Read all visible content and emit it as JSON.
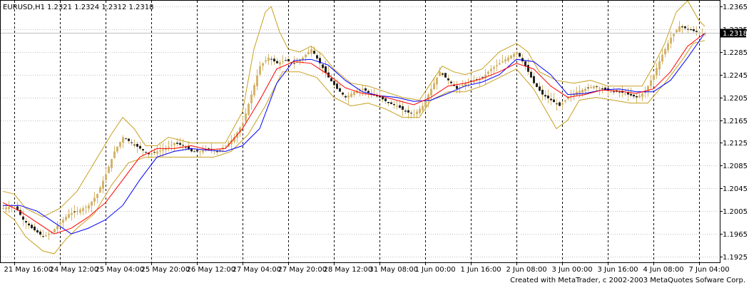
{
  "header": {
    "symbol": "EURUSD,H1",
    "ohlc": "1.2321 1.2324 1.2312 1.2318"
  },
  "footer": {
    "credit": "Created with MetaTrader, c 2002-2003 MetaQuotes Sofware Corp."
  },
  "price_badge": "1.2318",
  "colors": {
    "background": "#ffffff",
    "frame": "#000000",
    "grid_vertical": "#000000",
    "grid_horizontal": "#c0c0c0",
    "candles": "#d4b46a",
    "envelope": "#c8a020",
    "ma_fast": "#ff0000",
    "ma_slow": "#0000ff",
    "badge_bg": "#000000",
    "badge_text": "#ffffff"
  },
  "chart_data": {
    "type": "line",
    "y_ticks": [
      "1.2365",
      "1.2325",
      "1.2285",
      "1.2245",
      "1.2205",
      "1.2165",
      "1.2125",
      "1.2085",
      "1.2045",
      "1.2005",
      "1.1965",
      "1.1925"
    ],
    "y_tick_values": [
      1.2365,
      1.2325,
      1.2285,
      1.2245,
      1.2205,
      1.2165,
      1.2125,
      1.2085,
      1.2045,
      1.2005,
      1.1965,
      1.1925
    ],
    "ylim": [
      1.1915,
      1.2375
    ],
    "x_ticks": [
      "21 May 16:00",
      "24 May 12:00",
      "25 May 04:00",
      "25 May 20:00",
      "26 May 12:00",
      "27 May 04:00",
      "27 May 20:00",
      "28 May 12:00",
      "31 May 08:00",
      "1 Jun 00:00",
      "1 Jun 16:00",
      "2 Jun 08:00",
      "3 Jun 00:00",
      "3 Jun 16:00",
      "4 Jun 08:00",
      "7 Jun 04:00"
    ],
    "bars_count": 240,
    "x_tick_bars": [
      4,
      20,
      36,
      52,
      68,
      84,
      100,
      116,
      132,
      148,
      164,
      180,
      196,
      212,
      228,
      244
    ],
    "grid": true,
    "last_price": 1.2318,
    "series": [
      {
        "key": "close",
        "points": [
          [
            0,
            1.201
          ],
          [
            4,
            1.2015
          ],
          [
            7,
            1.199
          ],
          [
            10,
            1.1975
          ],
          [
            14,
            1.196
          ],
          [
            17,
            1.1968
          ],
          [
            20,
            1.1985
          ],
          [
            23,
            1.2
          ],
          [
            26,
            1.2005
          ],
          [
            30,
            1.2015
          ],
          [
            33,
            1.2035
          ],
          [
            36,
            1.207
          ],
          [
            39,
            1.211
          ],
          [
            42,
            1.2135
          ],
          [
            45,
            1.2125
          ],
          [
            48,
            1.2115
          ],
          [
            51,
            1.2105
          ],
          [
            54,
            1.211
          ],
          [
            57,
            1.2115
          ],
          [
            60,
            1.2125
          ],
          [
            63,
            1.212
          ],
          [
            66,
            1.211
          ],
          [
            69,
            1.211
          ],
          [
            72,
            1.2115
          ],
          [
            75,
            1.211
          ],
          [
            78,
            1.212
          ],
          [
            81,
            1.2135
          ],
          [
            84,
            1.216
          ],
          [
            87,
            1.221
          ],
          [
            90,
            1.226
          ],
          [
            93,
            1.2275
          ],
          [
            96,
            1.2265
          ],
          [
            99,
            1.227
          ],
          [
            102,
            1.2265
          ],
          [
            105,
            1.2275
          ],
          [
            108,
            1.229
          ],
          [
            111,
            1.2265
          ],
          [
            114,
            1.224
          ],
          [
            117,
            1.222
          ],
          [
            120,
            1.2205
          ],
          [
            123,
            1.2215
          ],
          [
            126,
            1.222
          ],
          [
            129,
            1.221
          ],
          [
            132,
            1.2205
          ],
          [
            135,
            1.2195
          ],
          [
            138,
            1.219
          ],
          [
            141,
            1.218
          ],
          [
            144,
            1.2175
          ],
          [
            147,
            1.219
          ],
          [
            150,
            1.222
          ],
          [
            153,
            1.225
          ],
          [
            156,
            1.2235
          ],
          [
            159,
            1.222
          ],
          [
            162,
            1.223
          ],
          [
            165,
            1.2235
          ],
          [
            168,
            1.224
          ],
          [
            171,
            1.2255
          ],
          [
            174,
            1.2265
          ],
          [
            177,
            1.2275
          ],
          [
            180,
            1.2285
          ],
          [
            183,
            1.226
          ],
          [
            186,
            1.223
          ],
          [
            189,
            1.221
          ],
          [
            192,
            1.22
          ],
          [
            195,
            1.219
          ],
          [
            198,
            1.2205
          ],
          [
            201,
            1.2215
          ],
          [
            204,
            1.222
          ],
          [
            207,
            1.2225
          ],
          [
            210,
            1.222
          ],
          [
            213,
            1.2215
          ],
          [
            216,
            1.2215
          ],
          [
            219,
            1.221
          ],
          [
            222,
            1.2205
          ],
          [
            225,
            1.2215
          ],
          [
            228,
            1.2245
          ],
          [
            231,
            1.228
          ],
          [
            234,
            1.231
          ],
          [
            237,
            1.233
          ],
          [
            240,
            1.2325
          ],
          [
            243,
            1.232
          ],
          [
            246,
            1.2318
          ]
        ]
      },
      {
        "key": "ma_fast",
        "points": [
          [
            0,
            1.202
          ],
          [
            6,
            1.2005
          ],
          [
            12,
            1.1985
          ],
          [
            18,
            1.1965
          ],
          [
            24,
            1.1975
          ],
          [
            30,
            1.1995
          ],
          [
            36,
            1.202
          ],
          [
            42,
            1.206
          ],
          [
            48,
            1.21
          ],
          [
            54,
            1.2115
          ],
          [
            60,
            1.2115
          ],
          [
            66,
            1.212
          ],
          [
            72,
            1.2113
          ],
          [
            78,
            1.2115
          ],
          [
            84,
            1.215
          ],
          [
            90,
            1.22
          ],
          [
            96,
            1.2255
          ],
          [
            102,
            1.2268
          ],
          [
            108,
            1.2265
          ],
          [
            114,
            1.2245
          ],
          [
            120,
            1.2222
          ],
          [
            126,
            1.2212
          ],
          [
            132,
            1.2208
          ],
          [
            138,
            1.22
          ],
          [
            144,
            1.2192
          ],
          [
            150,
            1.2205
          ],
          [
            156,
            1.2225
          ],
          [
            162,
            1.223
          ],
          [
            168,
            1.2238
          ],
          [
            174,
            1.225
          ],
          [
            180,
            1.2265
          ],
          [
            186,
            1.2255
          ],
          [
            192,
            1.2225
          ],
          [
            198,
            1.2205
          ],
          [
            204,
            1.221
          ],
          [
            210,
            1.2218
          ],
          [
            216,
            1.2216
          ],
          [
            222,
            1.2212
          ],
          [
            228,
            1.222
          ],
          [
            234,
            1.225
          ],
          [
            240,
            1.2295
          ],
          [
            246,
            1.2318
          ]
        ]
      },
      {
        "key": "ma_slow",
        "points": [
          [
            0,
            1.2015
          ],
          [
            6,
            1.2015
          ],
          [
            12,
            1.2005
          ],
          [
            18,
            1.1985
          ],
          [
            24,
            1.1965
          ],
          [
            30,
            1.1975
          ],
          [
            36,
            1.199
          ],
          [
            42,
            1.2015
          ],
          [
            48,
            1.206
          ],
          [
            54,
            1.21
          ],
          [
            60,
            1.211
          ],
          [
            66,
            1.2115
          ],
          [
            72,
            1.2112
          ],
          [
            78,
            1.211
          ],
          [
            84,
            1.212
          ],
          [
            90,
            1.215
          ],
          [
            96,
            1.223
          ],
          [
            102,
            1.227
          ],
          [
            108,
            1.2272
          ],
          [
            114,
            1.2262
          ],
          [
            120,
            1.2235
          ],
          [
            126,
            1.2215
          ],
          [
            132,
            1.2208
          ],
          [
            138,
            1.2205
          ],
          [
            144,
            1.2198
          ],
          [
            150,
            1.22
          ],
          [
            156,
            1.2212
          ],
          [
            162,
            1.2225
          ],
          [
            168,
            1.2232
          ],
          [
            174,
            1.2245
          ],
          [
            180,
            1.2272
          ],
          [
            186,
            1.2268
          ],
          [
            192,
            1.2245
          ],
          [
            198,
            1.221
          ],
          [
            204,
            1.2212
          ],
          [
            210,
            1.2218
          ],
          [
            216,
            1.222
          ],
          [
            222,
            1.2215
          ],
          [
            228,
            1.2215
          ],
          [
            234,
            1.2235
          ],
          [
            240,
            1.2275
          ],
          [
            246,
            1.2318
          ]
        ]
      },
      {
        "key": "envelope_upper",
        "points": [
          [
            0,
            1.204
          ],
          [
            4,
            1.2035
          ],
          [
            8,
            1.201
          ],
          [
            14,
            1.1995
          ],
          [
            20,
            1.201
          ],
          [
            26,
            1.204
          ],
          [
            32,
            1.209
          ],
          [
            38,
            1.214
          ],
          [
            42,
            1.217
          ],
          [
            46,
            1.215
          ],
          [
            50,
            1.212
          ],
          [
            54,
            1.212
          ],
          [
            58,
            1.2135
          ],
          [
            62,
            1.213
          ],
          [
            66,
            1.2125
          ],
          [
            72,
            1.2125
          ],
          [
            78,
            1.2125
          ],
          [
            84,
            1.218
          ],
          [
            88,
            1.229
          ],
          [
            92,
            1.2355
          ],
          [
            94,
            1.2365
          ],
          [
            97,
            1.232
          ],
          [
            100,
            1.229
          ],
          [
            104,
            1.2285
          ],
          [
            108,
            1.2295
          ],
          [
            112,
            1.228
          ],
          [
            116,
            1.2255
          ],
          [
            122,
            1.223
          ],
          [
            128,
            1.2225
          ],
          [
            134,
            1.2215
          ],
          [
            140,
            1.2205
          ],
          [
            146,
            1.22
          ],
          [
            150,
            1.223
          ],
          [
            154,
            1.226
          ],
          [
            158,
            1.225
          ],
          [
            162,
            1.2245
          ],
          [
            168,
            1.2255
          ],
          [
            174,
            1.2285
          ],
          [
            180,
            1.23
          ],
          [
            184,
            1.2285
          ],
          [
            188,
            1.225
          ],
          [
            194,
            1.2235
          ],
          [
            200,
            1.223
          ],
          [
            206,
            1.2235
          ],
          [
            212,
            1.2225
          ],
          [
            218,
            1.2225
          ],
          [
            224,
            1.2225
          ],
          [
            228,
            1.226
          ],
          [
            232,
            1.23
          ],
          [
            236,
            1.2355
          ],
          [
            240,
            1.2375
          ],
          [
            244,
            1.234
          ],
          [
            246,
            1.233
          ]
        ]
      },
      {
        "key": "envelope_lower",
        "points": [
          [
            0,
            1.2005
          ],
          [
            4,
            1.199
          ],
          [
            8,
            1.196
          ],
          [
            14,
            1.1935
          ],
          [
            18,
            1.193
          ],
          [
            22,
            1.1955
          ],
          [
            26,
            1.1975
          ],
          [
            32,
            1.2
          ],
          [
            38,
            1.205
          ],
          [
            44,
            1.209
          ],
          [
            50,
            1.21
          ],
          [
            56,
            1.21
          ],
          [
            62,
            1.21
          ],
          [
            68,
            1.21
          ],
          [
            74,
            1.21
          ],
          [
            80,
            1.211
          ],
          [
            86,
            1.214
          ],
          [
            92,
            1.219
          ],
          [
            98,
            1.225
          ],
          [
            104,
            1.225
          ],
          [
            110,
            1.224
          ],
          [
            116,
            1.2205
          ],
          [
            122,
            1.219
          ],
          [
            128,
            1.2195
          ],
          [
            134,
            1.2185
          ],
          [
            140,
            1.217
          ],
          [
            146,
            1.217
          ],
          [
            150,
            1.22
          ],
          [
            156,
            1.2215
          ],
          [
            162,
            1.2215
          ],
          [
            168,
            1.2225
          ],
          [
            174,
            1.224
          ],
          [
            180,
            1.2255
          ],
          [
            186,
            1.222
          ],
          [
            190,
            1.2185
          ],
          [
            194,
            1.215
          ],
          [
            198,
            1.2165
          ],
          [
            202,
            1.22
          ],
          [
            208,
            1.2205
          ],
          [
            214,
            1.22
          ],
          [
            220,
            1.2195
          ],
          [
            226,
            1.2195
          ],
          [
            232,
            1.223
          ],
          [
            238,
            1.227
          ],
          [
            242,
            1.23
          ],
          [
            246,
            1.2305
          ]
        ]
      }
    ]
  }
}
